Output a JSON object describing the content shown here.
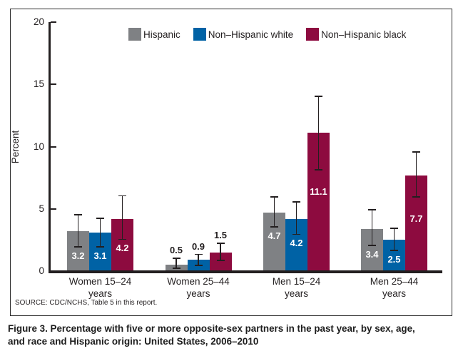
{
  "figure": {
    "source": "SOURCE: CDC/NCHS, Table 5 in this report.",
    "caption_line1": "Figure 3. Percentage with five or more opposite-sex partners in the past year, by sex, age,",
    "caption_line2": "and race and Hispanic origin: United States, 2006–2010"
  },
  "chart_data": {
    "type": "bar",
    "title": "",
    "xlabel": "",
    "ylabel": "Percent",
    "ylim": [
      0,
      20
    ],
    "yticks": [
      0,
      5,
      10,
      15,
      20
    ],
    "grid": false,
    "legend_position": "top",
    "error_bars": true,
    "categories": [
      "Women 15–24\nyears",
      "Women 25–44\nyears",
      "Men 15–24\nyears",
      "Men 25–44\nyears"
    ],
    "series": [
      {
        "name": "Hispanic",
        "color": "#7F8184",
        "values": [
          3.2,
          0.5,
          4.7,
          3.4
        ],
        "ci_low": [
          1.9,
          0.2,
          3.5,
          2.0
        ],
        "ci_high": [
          4.6,
          1.1,
          6.0,
          5.0
        ]
      },
      {
        "name": "Non–Hispanic white",
        "color": "#0062A5",
        "values": [
          3.1,
          0.9,
          4.2,
          2.5
        ],
        "ci_low": [
          1.9,
          0.4,
          2.9,
          1.6
        ],
        "ci_high": [
          4.3,
          1.4,
          5.6,
          3.5
        ]
      },
      {
        "name": "Non–Hispanic black",
        "color": "#8D0B3F",
        "values": [
          4.2,
          1.5,
          11.1,
          7.7
        ],
        "ci_low": [
          2.5,
          0.8,
          8.1,
          5.9
        ],
        "ci_high": [
          6.1,
          2.3,
          14.1,
          9.6
        ]
      }
    ],
    "value_label_colors": {
      "inside": "#FFFFFF",
      "above": "#231F20"
    }
  }
}
